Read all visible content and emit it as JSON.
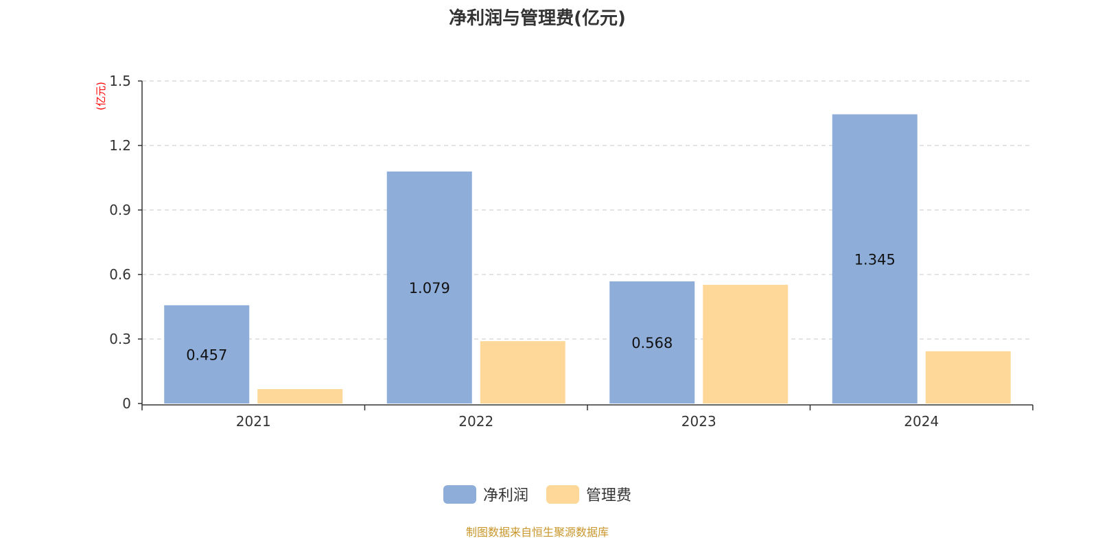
{
  "chart_data": {
    "type": "bar",
    "title": "净利润与管理费(亿元)",
    "ylabel": "(亿元)",
    "xlabel": "",
    "categories": [
      "2021",
      "2022",
      "2023",
      "2024"
    ],
    "ylim": [
      0,
      1.5
    ],
    "yticks": [
      "0",
      "0.3",
      "0.6",
      "0.9",
      "1.2",
      "1.5"
    ],
    "grid": true,
    "legend_position": "bottom",
    "series": [
      {
        "name": "净利润",
        "color": "#8eadd9",
        "values": [
          0.457,
          1.079,
          0.568,
          1.345
        ],
        "data_labels": [
          "0.457",
          "1.079",
          "0.568",
          "1.345"
        ]
      },
      {
        "name": "管理费",
        "color": "#fed899",
        "values": [
          0.067,
          0.29,
          0.552,
          0.243
        ]
      }
    ]
  },
  "source": "制图数据来自恒生聚源数据库"
}
